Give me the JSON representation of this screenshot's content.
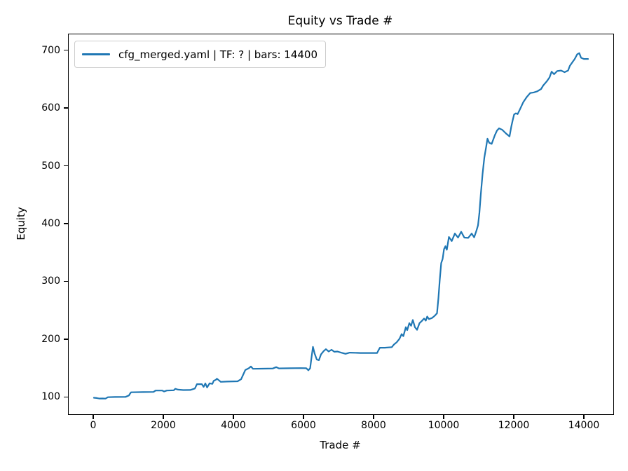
{
  "colors": {
    "line": "#1f77b4",
    "spine": "#000000",
    "background": "#ffffff",
    "legend_border": "#cccccc",
    "text": "#000000"
  },
  "chart_data": {
    "type": "line",
    "title": "Equity vs Trade #",
    "xlabel": "Trade #",
    "ylabel": "Equity",
    "xlim": [
      -720,
      14820
    ],
    "ylim": [
      71.5,
      728.5
    ],
    "x_ticks": [
      0,
      2000,
      4000,
      6000,
      8000,
      10000,
      12000,
      14000
    ],
    "y_ticks": [
      100,
      200,
      300,
      400,
      500,
      600,
      700
    ],
    "grid": false,
    "legend": {
      "position": "upper left",
      "entries": [
        {
          "label": "cfg_merged.yaml | TF: ? | bars: 14400",
          "color": "#1f77b4"
        }
      ]
    },
    "series": [
      {
        "name": "cfg_merged.yaml | TF: ? | bars: 14400",
        "color": "#1f77b4",
        "points": [
          [
            0,
            100
          ],
          [
            80,
            99.5
          ],
          [
            150,
            98.6
          ],
          [
            250,
            98.8
          ],
          [
            330,
            98.5
          ],
          [
            400,
            101
          ],
          [
            600,
            101.3
          ],
          [
            900,
            101.5
          ],
          [
            1000,
            104
          ],
          [
            1030,
            107
          ],
          [
            1060,
            109.5
          ],
          [
            1400,
            109.8
          ],
          [
            1700,
            110
          ],
          [
            1760,
            112.5
          ],
          [
            1950,
            112.5
          ],
          [
            2000,
            110.8
          ],
          [
            2080,
            112.5
          ],
          [
            2280,
            113
          ],
          [
            2320,
            115.5
          ],
          [
            2400,
            114
          ],
          [
            2550,
            113.3
          ],
          [
            2750,
            113.5
          ],
          [
            2880,
            116
          ],
          [
            2940,
            123.5
          ],
          [
            3080,
            123.5
          ],
          [
            3130,
            118.8
          ],
          [
            3180,
            124.8
          ],
          [
            3230,
            117.8
          ],
          [
            3300,
            125
          ],
          [
            3380,
            124
          ],
          [
            3420,
            129.5
          ],
          [
            3480,
            131
          ],
          [
            3510,
            133
          ],
          [
            3560,
            130.5
          ],
          [
            3620,
            127.5
          ],
          [
            3800,
            128
          ],
          [
            4100,
            128.5
          ],
          [
            4200,
            132
          ],
          [
            4260,
            140
          ],
          [
            4320,
            148
          ],
          [
            4420,
            151
          ],
          [
            4480,
            154
          ],
          [
            4540,
            150
          ],
          [
            4800,
            150.3
          ],
          [
            5100,
            150.5
          ],
          [
            5200,
            153
          ],
          [
            5280,
            150.8
          ],
          [
            5600,
            151
          ],
          [
            5900,
            151.3
          ],
          [
            6060,
            151
          ],
          [
            6120,
            147.5
          ],
          [
            6170,
            151
          ],
          [
            6210,
            170
          ],
          [
            6250,
            188
          ],
          [
            6300,
            176
          ],
          [
            6360,
            166
          ],
          [
            6420,
            165
          ],
          [
            6480,
            175
          ],
          [
            6560,
            181
          ],
          [
            6620,
            184
          ],
          [
            6700,
            180
          ],
          [
            6780,
            183
          ],
          [
            6860,
            179.5
          ],
          [
            6950,
            180
          ],
          [
            7050,
            178
          ],
          [
            7180,
            176
          ],
          [
            7300,
            178
          ],
          [
            7600,
            177.5
          ],
          [
            8080,
            177.5
          ],
          [
            8120,
            182
          ],
          [
            8160,
            186.5
          ],
          [
            8300,
            186.5
          ],
          [
            8500,
            187.5
          ],
          [
            8560,
            192
          ],
          [
            8640,
            196
          ],
          [
            8720,
            202
          ],
          [
            8780,
            210
          ],
          [
            8830,
            206.5
          ],
          [
            8900,
            222
          ],
          [
            8940,
            217
          ],
          [
            9000,
            229
          ],
          [
            9050,
            224.5
          ],
          [
            9100,
            234.5
          ],
          [
            9160,
            222
          ],
          [
            9220,
            217.5
          ],
          [
            9290,
            229
          ],
          [
            9360,
            233
          ],
          [
            9420,
            237
          ],
          [
            9470,
            233.5
          ],
          [
            9510,
            240.5
          ],
          [
            9560,
            236
          ],
          [
            9650,
            238
          ],
          [
            9730,
            242
          ],
          [
            9790,
            246
          ],
          [
            9830,
            272
          ],
          [
            9870,
            305
          ],
          [
            9910,
            333
          ],
          [
            9950,
            340
          ],
          [
            9990,
            357
          ],
          [
            10030,
            362
          ],
          [
            10070,
            356
          ],
          [
            10130,
            378
          ],
          [
            10210,
            371
          ],
          [
            10300,
            384
          ],
          [
            10390,
            377
          ],
          [
            10480,
            387
          ],
          [
            10570,
            377
          ],
          [
            10680,
            376.5
          ],
          [
            10780,
            384
          ],
          [
            10850,
            377.5
          ],
          [
            10910,
            388
          ],
          [
            10960,
            398
          ],
          [
            11000,
            420
          ],
          [
            11040,
            452
          ],
          [
            11090,
            487
          ],
          [
            11140,
            515
          ],
          [
            11190,
            533
          ],
          [
            11230,
            548
          ],
          [
            11280,
            541
          ],
          [
            11350,
            539
          ],
          [
            11440,
            554
          ],
          [
            11500,
            562
          ],
          [
            11560,
            566
          ],
          [
            11650,
            563.5
          ],
          [
            11760,
            557
          ],
          [
            11860,
            552
          ],
          [
            11910,
            569
          ],
          [
            11950,
            580
          ],
          [
            11990,
            590
          ],
          [
            12040,
            592
          ],
          [
            12090,
            590.5
          ],
          [
            12150,
            598
          ],
          [
            12250,
            611
          ],
          [
            12350,
            620
          ],
          [
            12450,
            627
          ],
          [
            12550,
            628
          ],
          [
            12650,
            630
          ],
          [
            12760,
            634
          ],
          [
            12820,
            640
          ],
          [
            12920,
            647
          ],
          [
            13000,
            654
          ],
          [
            13060,
            664
          ],
          [
            13130,
            659.5
          ],
          [
            13220,
            665
          ],
          [
            13330,
            666
          ],
          [
            13430,
            663
          ],
          [
            13530,
            666
          ],
          [
            13580,
            674
          ],
          [
            13650,
            680
          ],
          [
            13720,
            686
          ],
          [
            13790,
            694
          ],
          [
            13850,
            696
          ],
          [
            13900,
            688
          ],
          [
            13980,
            686
          ],
          [
            14100,
            686
          ]
        ]
      }
    ]
  }
}
